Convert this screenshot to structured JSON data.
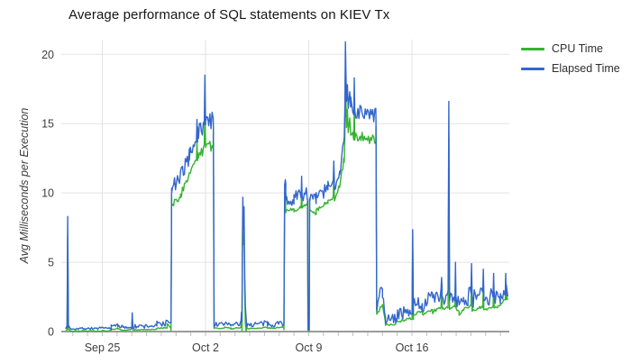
{
  "title": "Average performance of SQL statements on KIEV Tx",
  "legend": {
    "items": [
      {
        "label": "CPU Time",
        "color": "#35b32f"
      },
      {
        "label": "Elapsed Time",
        "color": "#3366cc"
      }
    ]
  },
  "axes": {
    "y_title": "Avg Milliseconds per Execution",
    "y_ticks": [
      0,
      5,
      10,
      15,
      20
    ],
    "x_ticks": [
      {
        "day": 4,
        "label": "Sep 25"
      },
      {
        "day": 11,
        "label": "Oct 2"
      },
      {
        "day": 18,
        "label": "Oct 9"
      },
      {
        "day": 25,
        "label": "Oct 16"
      }
    ],
    "minor_tick_day_start": 2,
    "minor_tick_day_end": 31,
    "label_color": "#3f3f3f",
    "grid_color": "#e3e3e3",
    "axis_color": "#9b9b9b",
    "minor_tick_color": "#bdbdbd"
  },
  "chart_data": {
    "type": "line",
    "title": "Average performance of SQL statements on KIEV Tx",
    "xlabel": "",
    "ylabel": "Avg Milliseconds per Execution",
    "x_unit": "days (day 4 = Sep 25, day 11 = Oct 2, day 18 = Oct 9, day 25 = Oct 16)",
    "x_range": [
      1.2,
      31.6
    ],
    "ylim": [
      0,
      21.5
    ],
    "grid": true,
    "legend_position": "top-right",
    "series": [
      {
        "name": "CPU Time",
        "color": "#35b32f"
      },
      {
        "name": "Elapsed Time",
        "color": "#3366cc"
      }
    ],
    "noise_seed": 7,
    "sample_step_days": 0.07,
    "ops": [
      {
        "seg": [
          1.52,
          1.6,
          0.25,
          0.3,
          0.06,
          0.15
        ]
      },
      {
        "spike": [
          1.655,
          8.3,
          0.045,
          1.4
        ]
      },
      {
        "seg": [
          1.7,
          1.8,
          0.45,
          0.3,
          0.1,
          0.18
        ]
      },
      {
        "seg": [
          1.8,
          4.6,
          0.22,
          0.24,
          0.09,
          0.14
        ]
      },
      {
        "seg": [
          4.6,
          5.05,
          0.35,
          0.5,
          0.14,
          0.16
        ]
      },
      {
        "seg": [
          5.05,
          5.4,
          0.45,
          0.32,
          0.15,
          0.15
        ]
      },
      {
        "seg": [
          5.4,
          5.95,
          0.28,
          0.32,
          0.09,
          0.14
        ]
      },
      {
        "spike": [
          6.03,
          1.35,
          0.04,
          0.35
        ]
      },
      {
        "seg": [
          6.08,
          7.7,
          0.35,
          0.42,
          0.16,
          0.16
        ]
      },
      {
        "seg": [
          7.7,
          8.4,
          0.55,
          0.62,
          0.24,
          0.2
        ]
      },
      {
        "seg": [
          8.4,
          8.64,
          0.9,
          0.55,
          0.18,
          0.2
        ]
      },
      {
        "seg": [
          8.66,
          8.7,
          0.6,
          10.3,
          0.05,
          0.5
        ]
      },
      {
        "seg": [
          8.7,
          9.3,
          10.4,
          11.0,
          0.55,
          1.0
        ]
      },
      {
        "seg": [
          9.3,
          9.9,
          11.2,
          12.6,
          0.6,
          1.1
        ]
      },
      {
        "seg": [
          9.9,
          10.3,
          12.8,
          13.9,
          0.55,
          1.2
        ]
      },
      {
        "spike": [
          10.42,
          15.3,
          0.04,
          1.6
        ]
      },
      {
        "seg": [
          10.46,
          10.92,
          14.3,
          14.9,
          0.7,
          1.4
        ]
      },
      {
        "spike": [
          10.96,
          18.5,
          0.045,
          2.2
        ]
      },
      {
        "seg": [
          11.0,
          11.52,
          15.1,
          15.3,
          0.65,
          1.6
        ]
      },
      {
        "seg": [
          11.53,
          11.58,
          14.8,
          0.6,
          0.05,
          0.3
        ]
      },
      {
        "seg": [
          11.58,
          12.3,
          0.5,
          0.52,
          0.18,
          0.18
        ]
      },
      {
        "seg": [
          12.3,
          12.72,
          0.65,
          0.58,
          0.24,
          0.2
        ]
      },
      {
        "seg": [
          12.72,
          13.38,
          0.45,
          0.55,
          0.18,
          0.17
        ]
      },
      {
        "spike": [
          13.44,
          1.4,
          0.035,
          0.35
        ]
      },
      {
        "pts": [
          [
            13.47,
            0.8
          ],
          [
            13.5,
            6.5
          ],
          [
            13.53,
            9.7
          ],
          [
            13.57,
            7.4
          ],
          [
            13.61,
            9.0
          ],
          [
            13.66,
            4.0
          ],
          [
            13.7,
            1.8
          ],
          [
            13.76,
            0.9
          ]
        ],
        "gap": 1.2
      },
      {
        "seg": [
          13.8,
          15.2,
          0.5,
          0.58,
          0.21,
          0.18
        ]
      },
      {
        "seg": [
          15.2,
          16.3,
          0.55,
          0.62,
          0.24,
          0.19
        ]
      },
      {
        "seg": [
          16.32,
          16.37,
          0.6,
          10.6,
          0.05,
          0.5
        ]
      },
      {
        "spike": [
          16.41,
          10.95,
          0.035,
          0.8
        ]
      },
      {
        "seg": [
          16.43,
          17.0,
          9.4,
          9.6,
          0.45,
          0.55
        ]
      },
      {
        "seg": [
          17.0,
          17.48,
          9.6,
          9.85,
          0.5,
          0.6
        ]
      },
      {
        "spike": [
          17.52,
          11.2,
          0.035,
          0.9
        ]
      },
      {
        "seg": [
          17.56,
          17.9,
          9.85,
          10.0,
          0.5,
          0.6
        ]
      },
      {
        "pts": [
          [
            17.92,
            9.5
          ],
          [
            17.95,
            0.15
          ],
          [
            18.03,
            0.12
          ],
          [
            18.06,
            9.6
          ]
        ],
        "gap": 0.1
      },
      {
        "seg": [
          18.07,
          18.5,
          9.7,
          9.4,
          0.5,
          0.6
        ]
      },
      {
        "seg": [
          18.5,
          19.3,
          9.7,
          10.3,
          0.55,
          0.65
        ]
      },
      {
        "seg": [
          19.3,
          19.66,
          10.3,
          10.55,
          0.55,
          0.68
        ]
      },
      {
        "spike": [
          19.7,
          12.3,
          0.035,
          0.9
        ]
      },
      {
        "seg": [
          19.74,
          20.1,
          10.6,
          11.6,
          0.6,
          0.75
        ]
      },
      {
        "seg": [
          20.1,
          20.38,
          11.8,
          13.5,
          0.6,
          0.9
        ]
      },
      {
        "pts": [
          [
            20.41,
            14.0
          ],
          [
            20.45,
            16.2
          ],
          [
            20.49,
            20.9
          ],
          [
            20.52,
            18.9
          ],
          [
            20.56,
            16.6
          ],
          [
            20.62,
            17.8
          ],
          [
            20.68,
            16.1
          ],
          [
            20.78,
            17.3
          ],
          [
            20.84,
            16.2
          ]
        ],
        "gap": 1.9
      },
      {
        "seg": [
          20.85,
          21.05,
          16.3,
          15.9,
          0.7,
          1.7
        ]
      },
      {
        "spike": [
          21.09,
          18.3,
          0.035,
          1.9
        ]
      },
      {
        "seg": [
          21.12,
          22.55,
          15.9,
          15.6,
          0.55,
          1.55
        ]
      },
      {
        "seg": [
          22.56,
          22.61,
          15.2,
          1.6,
          0.05,
          0.4
        ]
      },
      {
        "seg": [
          22.62,
          23.0,
          2.0,
          2.8,
          0.65,
          0.45
        ]
      },
      {
        "seg": [
          23.0,
          23.2,
          2.5,
          1.1,
          0.4,
          0.3
        ]
      },
      {
        "seg": [
          23.2,
          23.9,
          0.9,
          0.95,
          0.33,
          0.25
        ]
      },
      {
        "seg": [
          23.9,
          24.92,
          1.2,
          1.5,
          0.48,
          0.3
        ]
      },
      {
        "spike": [
          25.05,
          7.35,
          0.045,
          1.3
        ]
      },
      {
        "seg": [
          25.09,
          25.7,
          1.9,
          2.2,
          0.58,
          0.4
        ]
      },
      {
        "seg": [
          25.7,
          26.4,
          2.0,
          2.4,
          0.68,
          0.45
        ]
      },
      {
        "seg": [
          26.4,
          26.98,
          2.2,
          2.6,
          0.68,
          0.45
        ]
      },
      {
        "spike": [
          27.01,
          3.9,
          0.035,
          0.6
        ]
      },
      {
        "seg": [
          27.04,
          27.45,
          2.3,
          2.4,
          0.58,
          0.4
        ]
      },
      {
        "spike": [
          27.5,
          16.6,
          0.05,
          2.6
        ]
      },
      {
        "seg": [
          27.55,
          27.91,
          2.4,
          2.6,
          0.66,
          0.45
        ]
      },
      {
        "spike": [
          27.95,
          5.0,
          0.035,
          0.8
        ]
      },
      {
        "seg": [
          27.99,
          28.2,
          2.3,
          2.0,
          0.5,
          0.38
        ]
      },
      {
        "seg": [
          28.2,
          28.5,
          1.7,
          2.2,
          0.45,
          0.35
        ]
      },
      {
        "seg": [
          28.5,
          29.0,
          2.4,
          2.6,
          0.66,
          0.45
        ]
      },
      {
        "spike": [
          29.04,
          4.9,
          0.035,
          0.7
        ]
      },
      {
        "seg": [
          29.08,
          29.8,
          2.3,
          2.6,
          0.66,
          0.45
        ]
      },
      {
        "spike": [
          29.84,
          4.5,
          0.035,
          0.7
        ]
      },
      {
        "seg": [
          29.88,
          30.5,
          2.3,
          2.55,
          0.62,
          0.42
        ]
      },
      {
        "spike": [
          30.54,
          4.2,
          0.035,
          0.65
        ]
      },
      {
        "seg": [
          30.58,
          31.0,
          2.4,
          2.6,
          0.58,
          0.4
        ]
      },
      {
        "seg": [
          31.0,
          31.3,
          2.6,
          3.0,
          0.55,
          0.4
        ]
      },
      {
        "spike": [
          31.36,
          4.2,
          0.035,
          0.6
        ]
      },
      {
        "seg": [
          31.4,
          31.5,
          3.2,
          2.8,
          0.35,
          0.35
        ]
      }
    ]
  }
}
